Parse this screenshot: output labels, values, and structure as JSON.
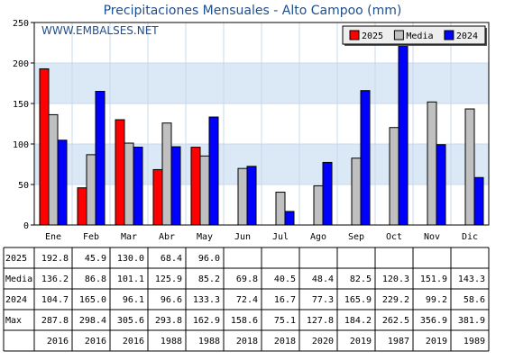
{
  "title": "Precipitaciones Mensuales - Alto Campoo (mm)",
  "watermark": "WWW.EMBALSES.NET",
  "colors": {
    "2025": "#ff0000",
    "Media": "#c0c0c0",
    "2024": "#0000ff",
    "band": "#dbe9f7",
    "title": "#1f4e8c"
  },
  "chart_data": {
    "type": "bar",
    "categories": [
      "Ene",
      "Feb",
      "Mar",
      "Abr",
      "May",
      "Jun",
      "Jul",
      "Ago",
      "Sep",
      "Oct",
      "Nov",
      "Dic"
    ],
    "series": [
      {
        "name": "2025",
        "values": [
          192.8,
          45.9,
          130.0,
          68.4,
          96.0,
          null,
          null,
          null,
          null,
          null,
          null,
          null
        ]
      },
      {
        "name": "Media",
        "values": [
          136.2,
          86.8,
          101.1,
          125.9,
          85.2,
          69.8,
          40.5,
          48.4,
          82.5,
          120.3,
          151.9,
          143.3
        ]
      },
      {
        "name": "2024",
        "values": [
          104.7,
          165.0,
          96.1,
          96.6,
          133.3,
          72.4,
          16.7,
          77.3,
          165.9,
          229.2,
          99.2,
          58.6
        ]
      }
    ],
    "ylim": [
      0,
      250
    ],
    "yticks": [
      0,
      50,
      100,
      150,
      200,
      250
    ],
    "legend": "top-right",
    "grid": true
  },
  "table": {
    "rows": [
      {
        "label": "2025",
        "cells": [
          "192.8",
          "45.9",
          "130.0",
          "68.4",
          "96.0",
          "",
          "",
          "",
          "",
          "",
          "",
          ""
        ]
      },
      {
        "label": "Media",
        "cells": [
          "136.2",
          "86.8",
          "101.1",
          "125.9",
          "85.2",
          "69.8",
          "40.5",
          "48.4",
          "82.5",
          "120.3",
          "151.9",
          "143.3"
        ]
      },
      {
        "label": "2024",
        "cells": [
          "104.7",
          "165.0",
          "96.1",
          "96.6",
          "133.3",
          "72.4",
          "16.7",
          "77.3",
          "165.9",
          "229.2",
          "99.2",
          "58.6"
        ]
      },
      {
        "label": "Max",
        "cells": [
          "287.8",
          "298.4",
          "305.6",
          "293.8",
          "162.9",
          "158.6",
          "75.1",
          "127.8",
          "184.2",
          "262.5",
          "356.9",
          "381.9"
        ]
      },
      {
        "label": "",
        "cells": [
          "2016",
          "2016",
          "2016",
          "1988",
          "1988",
          "2018",
          "2018",
          "2020",
          "2019",
          "1987",
          "2019",
          "1989"
        ]
      }
    ]
  }
}
